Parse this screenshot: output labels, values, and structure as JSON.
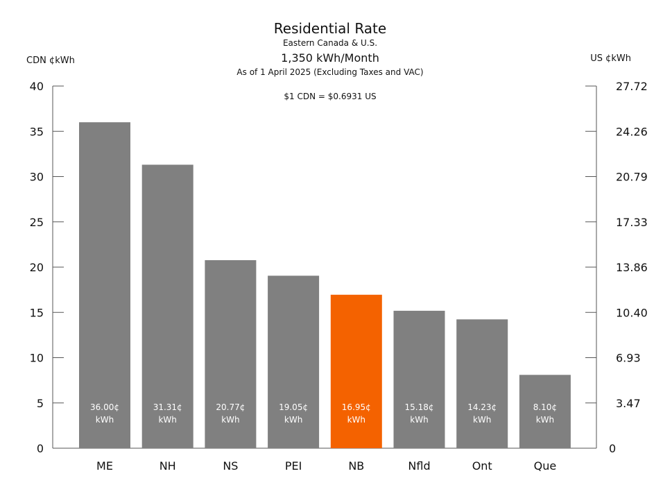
{
  "chart_data": {
    "type": "bar",
    "title": "Residential Rate",
    "subtitle_lines": [
      "Eastern Canada & U.S.",
      "1,350 kWh/Month",
      "As of 1 April 2025 (Excluding Taxes and VAC)"
    ],
    "annotation": "$1 CDN = $0.6931 US",
    "ylabel_left": "CDN ¢kWh",
    "ylabel_right": "US ¢kWh",
    "categories": [
      "ME",
      "NH",
      "NS",
      "PEI",
      "NB",
      "Nfld",
      "Ont",
      "Que"
    ],
    "values": [
      36.0,
      31.31,
      20.77,
      19.05,
      16.95,
      15.18,
      14.23,
      8.1
    ],
    "value_labels": [
      "36.00¢",
      "31.31¢",
      "20.77¢",
      "19.05¢",
      "16.95¢",
      "15.18¢",
      "14.23¢",
      "8.10¢"
    ],
    "value_unit_label": "kWh",
    "ylim": [
      0,
      40
    ],
    "left_ticks": [
      "0",
      "5",
      "10",
      "15",
      "20",
      "25",
      "30",
      "35",
      "40"
    ],
    "right_ticks": [
      "0",
      "3.47",
      "6.93",
      "10.40",
      "13.86",
      "17.33",
      "20.79",
      "24.26",
      "27.72"
    ],
    "grid": false,
    "colors": {
      "default_bar": "#808080",
      "highlight_bar": "#f46200",
      "highlight_category": "NB"
    }
  }
}
